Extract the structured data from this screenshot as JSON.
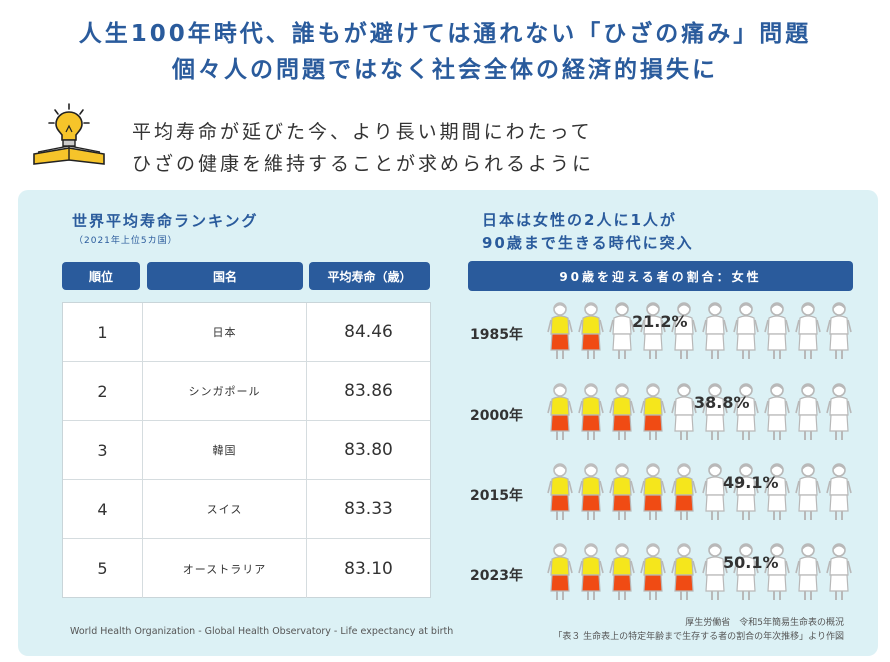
{
  "header": {
    "line1": "人生100年時代、誰もが避けては通れない「ひざの痛み」問題",
    "line2": "個々人の問題ではなく社会全体の経済的損失に"
  },
  "intro": {
    "icon": "lightbulb-book-icon",
    "line1": "平均寿命が延びた今、より長い期間にわたって",
    "line2": "ひざの健康を維持することが求められるように"
  },
  "ranking": {
    "title": "世界平均寿命ランキング",
    "subtitle": "（2021年上位5カ国）",
    "headers": [
      "順位",
      "国名",
      "平均寿命（歳）"
    ],
    "rows": [
      {
        "rank": "1",
        "country": "日本",
        "value": "84.46"
      },
      {
        "rank": "2",
        "country": "シンガポール",
        "value": "83.86"
      },
      {
        "rank": "3",
        "country": "韓国",
        "value": "83.80"
      },
      {
        "rank": "4",
        "country": "スイス",
        "value": "83.33"
      },
      {
        "rank": "5",
        "country": "オーストラリア",
        "value": "83.10"
      }
    ],
    "source": "World Health Organization - Global Health Observatory - Life expectancy at birth"
  },
  "women90": {
    "title_line1": "日本は女性の2人に1人が",
    "title_line2": "90歳まで生きる時代に突入",
    "bar_label": "90歳を迎える者の割合：女性",
    "source_line1": "厚生労働省　令和5年簡易生命表の概況",
    "source_line2": "「表３ 生命表上の特定年齢まで生存する者の割合の年次推移」より作図"
  },
  "chart_data": {
    "type": "pictograph",
    "title": "90歳を迎える者の割合：女性",
    "categories": [
      "1985年",
      "2000年",
      "2015年",
      "2023年"
    ],
    "values": [
      21.2,
      38.8,
      49.1,
      50.1
    ],
    "labels": [
      "21.2%",
      "38.8%",
      "49.1%",
      "50.1%"
    ],
    "units_per_row": 10,
    "colored_figures": [
      2,
      4,
      5,
      5
    ],
    "colors": {
      "shirt": "#f5e61c",
      "skirt": "#f04b14",
      "hair": "#bdbdbd",
      "outline": "#b8b8b8",
      "empty": "#ffffff"
    }
  }
}
